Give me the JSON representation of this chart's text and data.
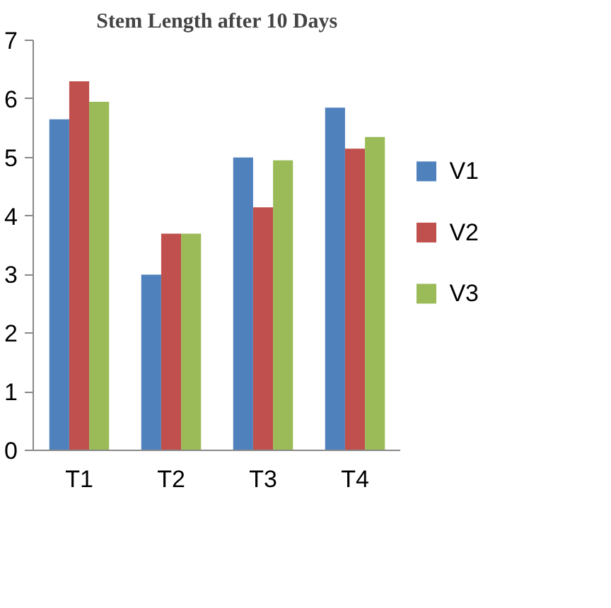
{
  "chart_data": {
    "type": "bar",
    "title": "Stem Length after 10 Days",
    "categories": [
      "T1",
      "T2",
      "T3",
      "T4"
    ],
    "series": [
      {
        "name": "V1",
        "color": "#4f81bd",
        "values": [
          5.65,
          3.0,
          5.0,
          5.85
        ]
      },
      {
        "name": "V2",
        "color": "#c0504d",
        "values": [
          6.3,
          3.7,
          4.15,
          5.15
        ]
      },
      {
        "name": "V3",
        "color": "#9bbb59",
        "values": [
          5.95,
          3.7,
          4.95,
          5.35
        ]
      }
    ],
    "ylim": [
      0,
      7
    ],
    "yticks": [
      0,
      1,
      2,
      3,
      4,
      5,
      6,
      7
    ],
    "grid": false,
    "legend": "right"
  }
}
